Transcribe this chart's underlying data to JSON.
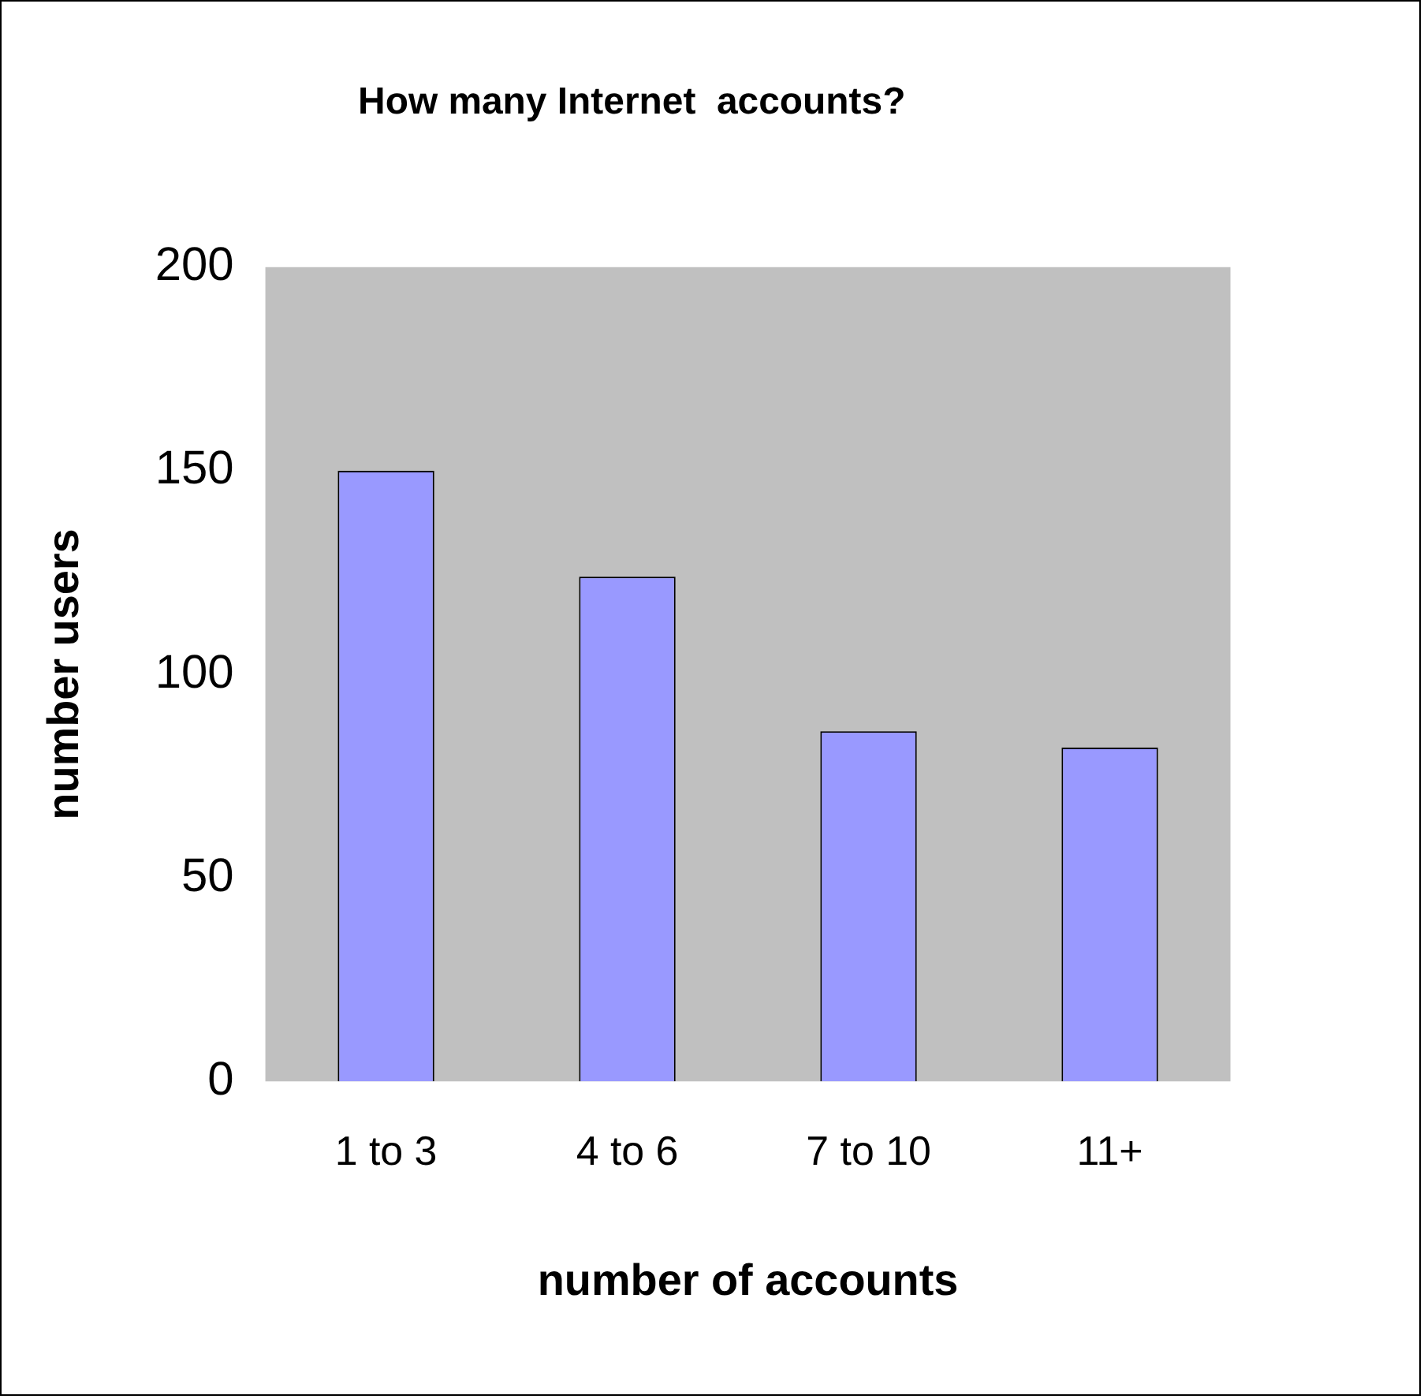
{
  "chart_data": {
    "type": "bar",
    "title": "How many Internet  accounts?",
    "xlabel": "number of accounts",
    "ylabel": "number users",
    "categories": [
      "1 to 3",
      "4 to 6",
      "7 to 10",
      "11+"
    ],
    "values": [
      150,
      124,
      86,
      82
    ],
    "color": "#9999ff",
    "ylim": [
      0,
      200
    ],
    "yticks": [
      0,
      50,
      100,
      150,
      200
    ],
    "grid": false,
    "legend": false
  }
}
